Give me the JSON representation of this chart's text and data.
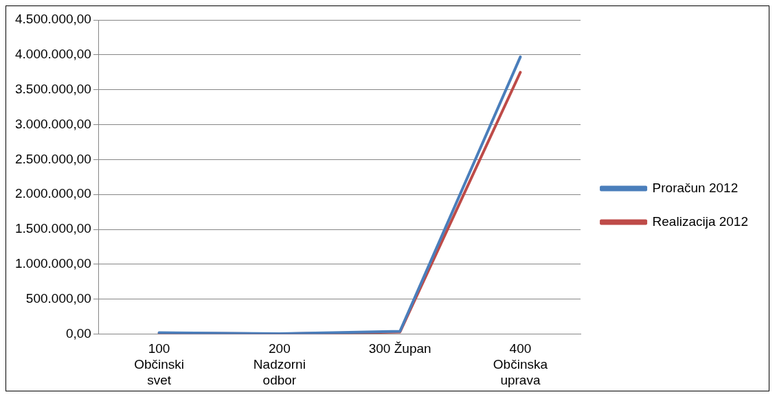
{
  "chart_data": {
    "type": "line",
    "categories": [
      "100 Občinski svet",
      "200 Nadzorni odbor",
      "300 Župan",
      "400 Občinska uprava"
    ],
    "series": [
      {
        "name": "Proračun 2012",
        "color": "#4a7ebb",
        "values": [
          20000,
          5000,
          40000,
          3970000
        ]
      },
      {
        "name": "Realizacija 2012",
        "color": "#be4b48",
        "values": [
          15000,
          3000,
          30000,
          3750000
        ]
      }
    ],
    "ylim": [
      0,
      4500000
    ],
    "yticks": [
      {
        "value": 0,
        "label": "0,00"
      },
      {
        "value": 500000,
        "label": "500.000,00"
      },
      {
        "value": 1000000,
        "label": "1.000.000,00"
      },
      {
        "value": 1500000,
        "label": "1.500.000,00"
      },
      {
        "value": 2000000,
        "label": "2.000.000,00"
      },
      {
        "value": 2500000,
        "label": "2.500.000,00"
      },
      {
        "value": 3000000,
        "label": "3.000.000,00"
      },
      {
        "value": 3500000,
        "label": "3.500.000,00"
      },
      {
        "value": 4000000,
        "label": "4.000.000,00"
      },
      {
        "value": 4500000,
        "label": "4.500.000,00"
      }
    ],
    "grid": "y",
    "legend": "right",
    "marker": "none"
  }
}
